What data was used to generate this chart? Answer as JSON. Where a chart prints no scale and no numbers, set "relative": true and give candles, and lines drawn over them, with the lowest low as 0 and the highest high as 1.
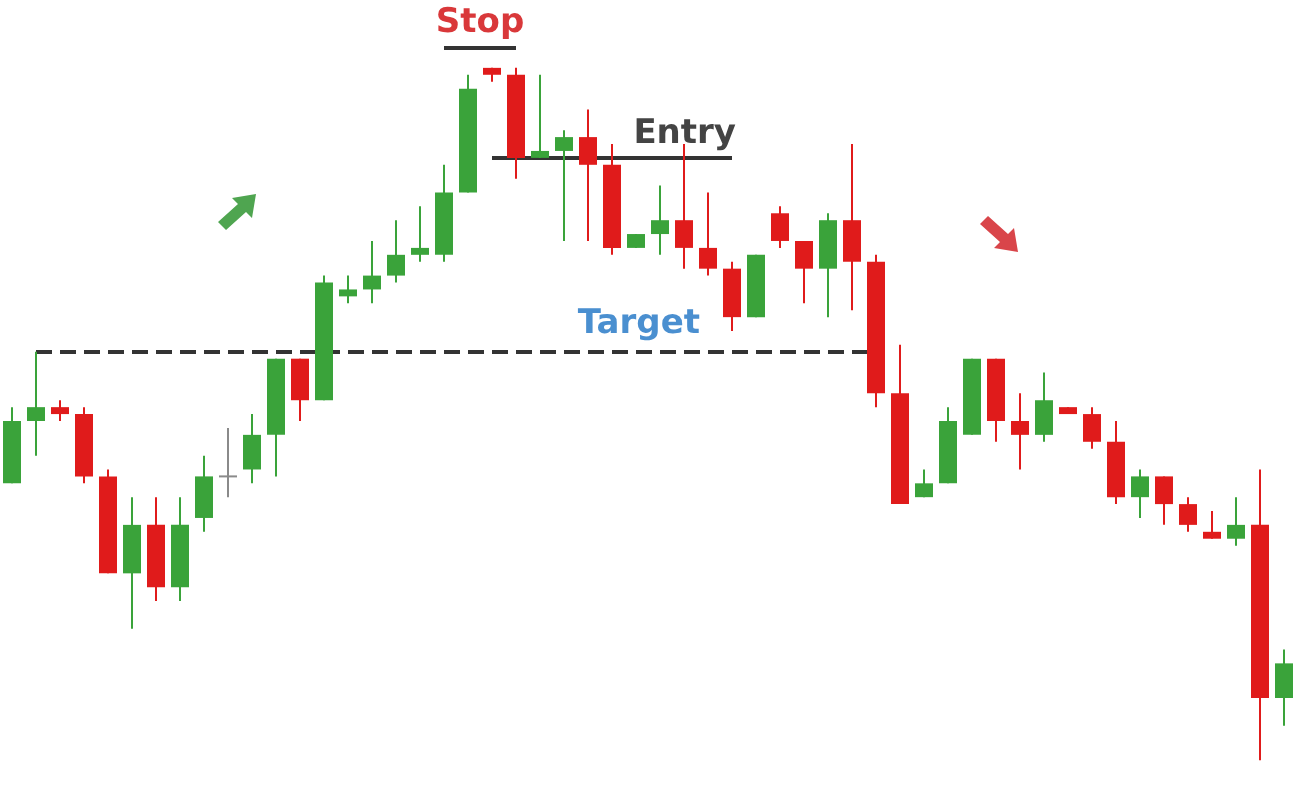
{
  "chart_data": {
    "type": "candlestick",
    "relative": true,
    "tick_labels": false,
    "categories": [
      null,
      null,
      null,
      null,
      null,
      null,
      null,
      null,
      null,
      null,
      null,
      null,
      null,
      null,
      null,
      null,
      null,
      null,
      null,
      null,
      null,
      null,
      null,
      null,
      null,
      null,
      null,
      null,
      null,
      null,
      null,
      null,
      null,
      null,
      null,
      null,
      null,
      null,
      null,
      null,
      null,
      null,
      null,
      null,
      null,
      null,
      null,
      null,
      null,
      null,
      null,
      null,
      null,
      null
    ],
    "ohlc": [
      [
        0.4,
        0.51,
        0.4,
        0.49
      ],
      [
        0.49,
        0.59,
        0.44,
        0.51
      ],
      [
        0.51,
        0.52,
        0.49,
        0.5
      ],
      [
        0.5,
        0.51,
        0.4,
        0.41
      ],
      [
        0.41,
        0.42,
        0.27,
        0.27
      ],
      [
        0.27,
        0.38,
        0.19,
        0.34
      ],
      [
        0.34,
        0.38,
        0.23,
        0.25
      ],
      [
        0.25,
        0.38,
        0.23,
        0.34
      ],
      [
        0.35,
        0.44,
        0.33,
        0.41
      ],
      [
        0.41,
        0.48,
        0.38,
        0.41
      ],
      [
        0.42,
        0.5,
        0.4,
        0.47
      ],
      [
        0.47,
        0.58,
        0.41,
        0.58
      ],
      [
        0.58,
        0.58,
        0.49,
        0.52
      ],
      [
        0.52,
        0.7,
        0.52,
        0.69
      ],
      [
        0.67,
        0.7,
        0.66,
        0.68
      ],
      [
        0.68,
        0.75,
        0.66,
        0.7
      ],
      [
        0.7,
        0.78,
        0.69,
        0.73
      ],
      [
        0.73,
        0.8,
        0.72,
        0.74
      ],
      [
        0.73,
        0.86,
        0.72,
        0.82
      ],
      [
        0.82,
        0.99,
        0.82,
        0.97
      ],
      [
        1.0,
        1.0,
        0.98,
        0.99
      ],
      [
        0.99,
        1.0,
        0.84,
        0.87
      ],
      [
        0.87,
        0.99,
        0.87,
        0.88
      ],
      [
        0.88,
        0.91,
        0.75,
        0.9
      ],
      [
        0.9,
        0.94,
        0.75,
        0.86
      ],
      [
        0.86,
        0.89,
        0.73,
        0.74
      ],
      [
        0.74,
        0.76,
        0.74,
        0.76
      ],
      [
        0.76,
        0.83,
        0.73,
        0.78
      ],
      [
        0.78,
        0.89,
        0.71,
        0.74
      ],
      [
        0.74,
        0.82,
        0.7,
        0.71
      ],
      [
        0.71,
        0.72,
        0.62,
        0.64
      ],
      [
        0.64,
        0.73,
        0.64,
        0.73
      ],
      [
        0.79,
        0.8,
        0.74,
        0.75
      ],
      [
        0.75,
        0.75,
        0.66,
        0.71
      ],
      [
        0.71,
        0.79,
        0.64,
        0.78
      ],
      [
        0.78,
        0.89,
        0.65,
        0.72
      ],
      [
        0.72,
        0.73,
        0.51,
        0.53
      ],
      [
        0.53,
        0.6,
        0.37,
        0.37
      ],
      [
        0.38,
        0.42,
        0.38,
        0.4
      ],
      [
        0.4,
        0.51,
        0.4,
        0.49
      ],
      [
        0.47,
        0.58,
        0.47,
        0.58
      ],
      [
        0.58,
        0.58,
        0.46,
        0.49
      ],
      [
        0.49,
        0.53,
        0.42,
        0.47
      ],
      [
        0.47,
        0.56,
        0.46,
        0.52
      ],
      [
        0.51,
        0.51,
        0.5,
        0.5
      ],
      [
        0.5,
        0.51,
        0.45,
        0.46
      ],
      [
        0.46,
        0.49,
        0.37,
        0.38
      ],
      [
        0.38,
        0.42,
        0.35,
        0.41
      ],
      [
        0.41,
        0.41,
        0.34,
        0.37
      ],
      [
        0.37,
        0.38,
        0.33,
        0.34
      ],
      [
        0.33,
        0.36,
        0.32,
        0.32
      ],
      [
        0.32,
        0.38,
        0.31,
        0.34
      ],
      [
        0.34,
        0.42,
        0.0,
        0.09
      ],
      [
        0.09,
        0.16,
        0.05,
        0.14
      ]
    ],
    "colors": [
      "#3aa33a",
      "#3aa33a",
      "#e01b1b",
      "#e01b1b",
      "#e01b1b",
      "#3aa33a",
      "#e01b1b",
      "#3aa33a",
      "#3aa33a",
      "#8a8a8a",
      "#3aa33a",
      "#3aa33a",
      "#e01b1b",
      "#3aa33a",
      "#3aa33a",
      "#3aa33a",
      "#3aa33a",
      "#3aa33a",
      "#3aa33a",
      "#3aa33a",
      "#e01b1b",
      "#e01b1b",
      "#3aa33a",
      "#3aa33a",
      "#e01b1b",
      "#e01b1b",
      "#3aa33a",
      "#3aa33a",
      "#e01b1b",
      "#e01b1b",
      "#e01b1b",
      "#3aa33a",
      "#e01b1b",
      "#e01b1b",
      "#3aa33a",
      "#e01b1b",
      "#e01b1b",
      "#e01b1b",
      "#3aa33a",
      "#3aa33a",
      "#3aa33a",
      "#e01b1b",
      "#e01b1b",
      "#3aa33a",
      "#e01b1b",
      "#e01b1b",
      "#e01b1b",
      "#3aa33a",
      "#e01b1b",
      "#e01b1b",
      "#e01b1b",
      "#3aa33a",
      "#e01b1b",
      "#3aa33a"
    ],
    "ref_lines": [
      {
        "axis": "y",
        "value": 0.59,
        "label": "Target",
        "color": "#333333",
        "line_style": "dashed"
      },
      {
        "axis": "y",
        "value": 1.03,
        "label": "Stop",
        "color": "#333333",
        "line_style": "solid"
      },
      {
        "axis": "y",
        "value": 0.87,
        "label": "Entry",
        "color": "#333333",
        "line_style": "solid"
      }
    ]
  }
}
